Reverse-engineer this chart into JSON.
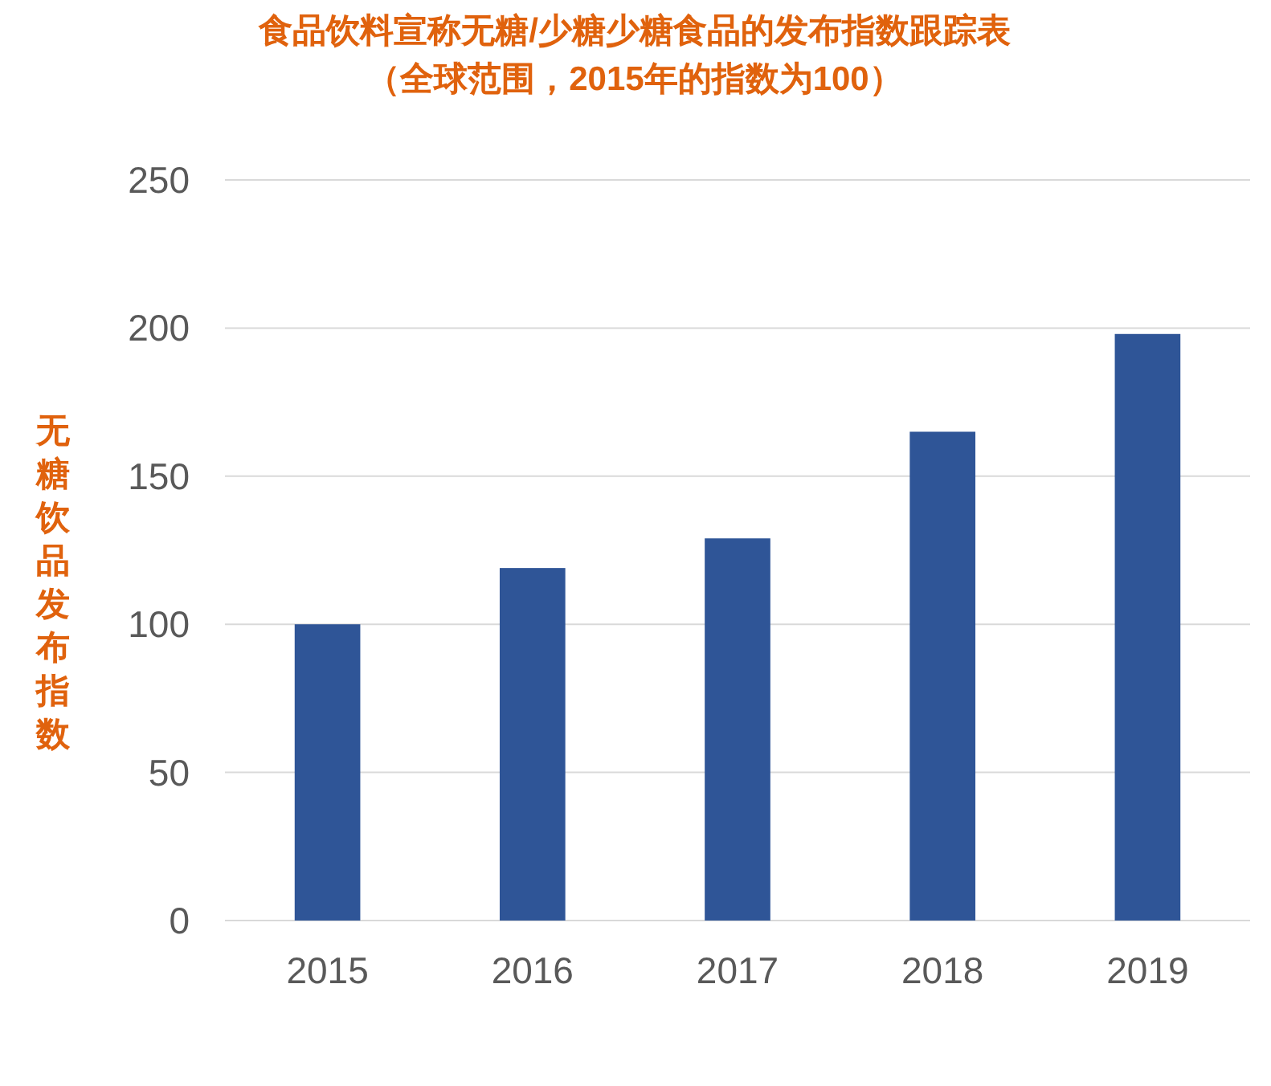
{
  "chart_data": {
    "type": "bar",
    "title": "食品饮料宣称无糖/少糖少糖食品的发布指数跟踪表",
    "subtitle": "（全球范围，2015年的指数为100）",
    "ylabel": "无糖饮品发布指数",
    "categories": [
      "2015",
      "2016",
      "2017",
      "2018",
      "2019"
    ],
    "values": [
      100,
      119,
      129,
      165,
      198
    ],
    "color": "#2f5597",
    "ylim": [
      0,
      250
    ],
    "yticks": [
      0,
      50,
      100,
      150,
      200,
      250
    ],
    "grid": "y"
  }
}
